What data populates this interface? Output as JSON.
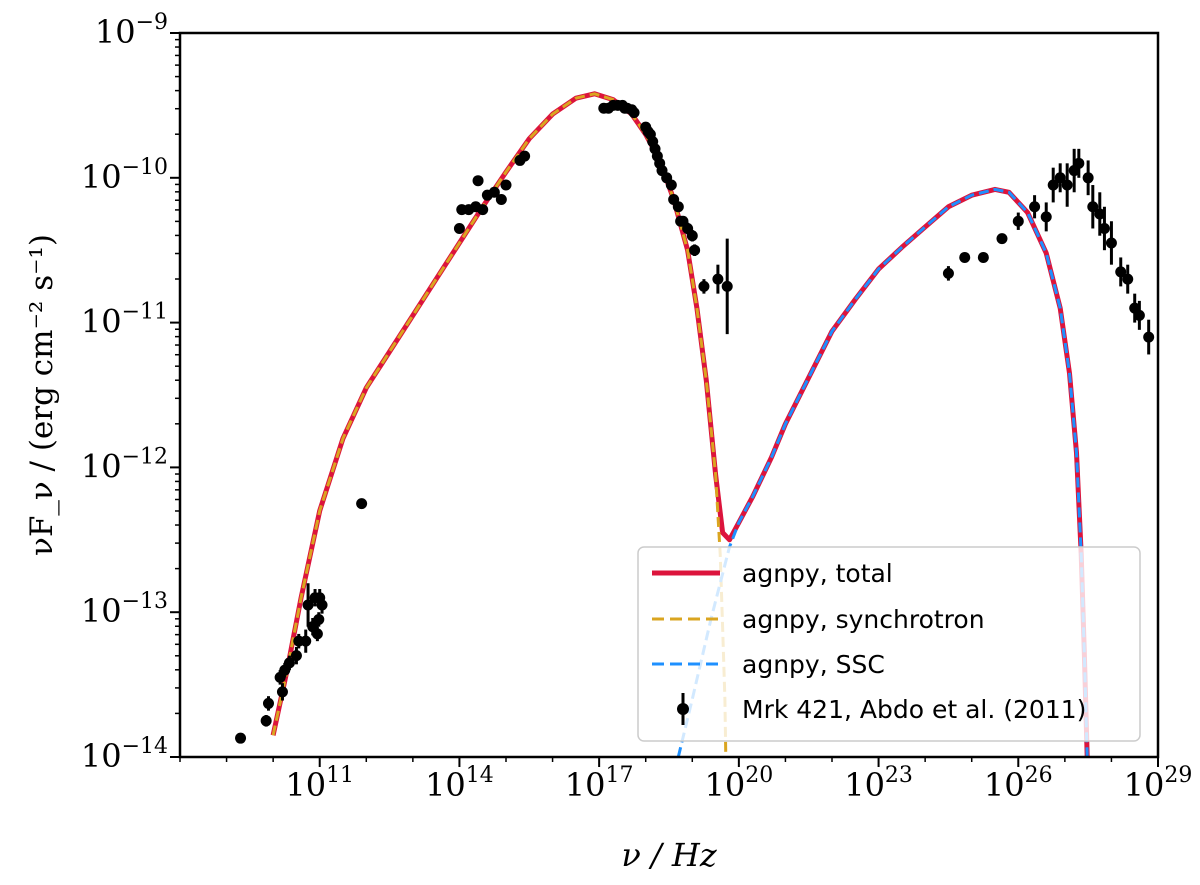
{
  "chart_data": {
    "type": "line",
    "xscale": "log",
    "yscale": "log",
    "xlim": [
      100000000.0,
      1e+29
    ],
    "ylim": [
      1e-14,
      1e-09
    ],
    "xlabel": "ν / Hz",
    "ylabel": "νF_ν / (erg cm⁻² s⁻¹)",
    "x_ticks": [
      {
        "base": "10",
        "exp": "11",
        "value": 100000000000.0
      },
      {
        "base": "10",
        "exp": "14",
        "value": 100000000000000.0
      },
      {
        "base": "10",
        "exp": "17",
        "value": 1e+17
      },
      {
        "base": "10",
        "exp": "20",
        "value": 1e+20
      },
      {
        "base": "10",
        "exp": "23",
        "value": 1e+23
      },
      {
        "base": "10",
        "exp": "26",
        "value": 1e+26
      },
      {
        "base": "10",
        "exp": "29",
        "value": 1e+29
      }
    ],
    "y_ticks": [
      {
        "base": "10",
        "exp": "−14",
        "value": 1e-14
      },
      {
        "base": "10",
        "exp": "−13",
        "value": 1e-13
      },
      {
        "base": "10",
        "exp": "−12",
        "value": 1e-12
      },
      {
        "base": "10",
        "exp": "−11",
        "value": 1e-11
      },
      {
        "base": "10",
        "exp": "−10",
        "value": 1e-10
      },
      {
        "base": "10",
        "exp": "−9",
        "value": 1e-09
      }
    ],
    "legend_position": "lower-right",
    "series": [
      {
        "name": "agnpy, total",
        "style": "solid",
        "color": "#dc143c",
        "log_points": [
          [
            10,
            -13.85
          ],
          [
            10.3,
            -13.4
          ],
          [
            10.6,
            -12.9
          ],
          [
            11,
            -12.3
          ],
          [
            11.5,
            -11.8
          ],
          [
            12,
            -11.45
          ],
          [
            12.5,
            -11.2
          ],
          [
            13,
            -10.95
          ],
          [
            13.5,
            -10.7
          ],
          [
            14,
            -10.45
          ],
          [
            14.5,
            -10.2
          ],
          [
            15,
            -9.96
          ],
          [
            15.5,
            -9.73
          ],
          [
            16,
            -9.56
          ],
          [
            16.5,
            -9.45
          ],
          [
            16.9,
            -9.42
          ],
          [
            17.3,
            -9.46
          ],
          [
            17.7,
            -9.56
          ],
          [
            18,
            -9.7
          ],
          [
            18.3,
            -9.88
          ],
          [
            18.6,
            -10.15
          ],
          [
            18.9,
            -10.5
          ],
          [
            19.1,
            -10.9
          ],
          [
            19.3,
            -11.4
          ],
          [
            19.5,
            -12.05
          ],
          [
            19.65,
            -12.45
          ],
          [
            19.8,
            -12.5
          ],
          [
            20,
            -12.38
          ],
          [
            20.3,
            -12.2
          ],
          [
            20.7,
            -11.93
          ],
          [
            21,
            -11.7
          ],
          [
            21.5,
            -11.38
          ],
          [
            22,
            -11.06
          ],
          [
            22.5,
            -10.84
          ],
          [
            23,
            -10.63
          ],
          [
            23.5,
            -10.48
          ],
          [
            24,
            -10.34
          ],
          [
            24.5,
            -10.2
          ],
          [
            25,
            -10.12
          ],
          [
            25.5,
            -10.08
          ],
          [
            25.8,
            -10.1
          ],
          [
            26.2,
            -10.24
          ],
          [
            26.6,
            -10.52
          ],
          [
            26.9,
            -10.9
          ],
          [
            27.1,
            -11.35
          ],
          [
            27.25,
            -11.9
          ],
          [
            27.35,
            -12.6
          ],
          [
            27.42,
            -13.3
          ],
          [
            27.48,
            -14.0
          ]
        ]
      },
      {
        "name": "agnpy, synchrotron",
        "style": "dashed",
        "color": "#daa520",
        "log_points": [
          [
            10,
            -13.85
          ],
          [
            10.3,
            -13.4
          ],
          [
            10.6,
            -12.9
          ],
          [
            11,
            -12.3
          ],
          [
            11.5,
            -11.8
          ],
          [
            12,
            -11.45
          ],
          [
            12.5,
            -11.2
          ],
          [
            13,
            -10.95
          ],
          [
            13.5,
            -10.7
          ],
          [
            14,
            -10.45
          ],
          [
            14.5,
            -10.2
          ],
          [
            15,
            -9.96
          ],
          [
            15.5,
            -9.73
          ],
          [
            16,
            -9.56
          ],
          [
            16.5,
            -9.45
          ],
          [
            16.9,
            -9.42
          ],
          [
            17.3,
            -9.46
          ],
          [
            17.7,
            -9.56
          ],
          [
            18,
            -9.7
          ],
          [
            18.3,
            -9.88
          ],
          [
            18.6,
            -10.15
          ],
          [
            18.9,
            -10.5
          ],
          [
            19.1,
            -10.9
          ],
          [
            19.3,
            -11.4
          ],
          [
            19.5,
            -12.05
          ],
          [
            19.6,
            -12.6
          ],
          [
            19.65,
            -13.1
          ],
          [
            19.7,
            -13.6
          ],
          [
            19.72,
            -14.0
          ]
        ]
      },
      {
        "name": "agnpy, SSC",
        "style": "dashed",
        "color": "#1e90ff",
        "log_points": [
          [
            18.7,
            -14.0
          ],
          [
            19,
            -13.6
          ],
          [
            19.4,
            -13.05
          ],
          [
            19.8,
            -12.55
          ],
          [
            20,
            -12.38
          ],
          [
            20.3,
            -12.2
          ],
          [
            20.7,
            -11.93
          ],
          [
            21,
            -11.7
          ],
          [
            21.5,
            -11.38
          ],
          [
            22,
            -11.06
          ],
          [
            22.5,
            -10.84
          ],
          [
            23,
            -10.63
          ],
          [
            23.5,
            -10.48
          ],
          [
            24,
            -10.34
          ],
          [
            24.5,
            -10.2
          ],
          [
            25,
            -10.12
          ],
          [
            25.5,
            -10.08
          ],
          [
            25.8,
            -10.1
          ],
          [
            26.2,
            -10.24
          ],
          [
            26.6,
            -10.52
          ],
          [
            26.9,
            -10.9
          ],
          [
            27.1,
            -11.35
          ],
          [
            27.25,
            -11.9
          ],
          [
            27.35,
            -12.6
          ],
          [
            27.42,
            -13.3
          ],
          [
            27.48,
            -14.0
          ]
        ]
      },
      {
        "name": "Mrk 421, Abdo et al. (2011)",
        "style": "errorbar",
        "color": "#000000",
        "log_points": [
          [
            9.3,
            -13.87,
            0.03
          ],
          [
            9.85,
            -13.75,
            0.04
          ],
          [
            9.9,
            -13.63,
            0.05
          ],
          [
            10.15,
            -13.45,
            0.05
          ],
          [
            10.2,
            -13.55,
            0.06
          ],
          [
            10.25,
            -13.4,
            0.05
          ],
          [
            10.35,
            -13.35,
            0.05
          ],
          [
            10.5,
            -13.3,
            0.06
          ],
          [
            10.55,
            -13.2,
            0.05
          ],
          [
            10.7,
            -13.2,
            0.08
          ],
          [
            10.75,
            -12.95,
            0.15
          ],
          [
            10.85,
            -13.1,
            0.06
          ],
          [
            10.9,
            -12.9,
            0.06
          ],
          [
            10.95,
            -13.15,
            0.05
          ],
          [
            10.98,
            -13.05,
            0.05
          ],
          [
            11.0,
            -12.9,
            0.06
          ],
          [
            11.05,
            -12.95,
            0.06
          ],
          [
            11.9,
            -12.25,
            0.03
          ],
          [
            14.0,
            -10.35,
            0.03
          ],
          [
            14.05,
            -10.22,
            0.03
          ],
          [
            14.2,
            -10.22,
            0.03
          ],
          [
            14.35,
            -10.2,
            0.03
          ],
          [
            14.4,
            -10.02,
            0.03
          ],
          [
            14.5,
            -10.22,
            0.03
          ],
          [
            14.6,
            -10.12,
            0.03
          ],
          [
            14.75,
            -10.1,
            0.03
          ],
          [
            14.9,
            -10.15,
            0.03
          ],
          [
            15.0,
            -10.05,
            0.03
          ],
          [
            15.3,
            -9.88,
            0.03
          ],
          [
            15.4,
            -9.85,
            0.03
          ],
          [
            17.1,
            -9.52,
            0.02
          ],
          [
            17.2,
            -9.52,
            0.02
          ],
          [
            17.3,
            -9.5,
            0.02
          ],
          [
            17.4,
            -9.5,
            0.02
          ],
          [
            17.5,
            -9.5,
            0.02
          ],
          [
            17.55,
            -9.52,
            0.02
          ],
          [
            17.6,
            -9.52,
            0.02
          ],
          [
            17.7,
            -9.53,
            0.02
          ],
          [
            17.75,
            -9.55,
            0.02
          ],
          [
            18.0,
            -9.65,
            0.02
          ],
          [
            18.05,
            -9.68,
            0.02
          ],
          [
            18.1,
            -9.7,
            0.02
          ],
          [
            18.15,
            -9.75,
            0.02
          ],
          [
            18.2,
            -9.8,
            0.02
          ],
          [
            18.25,
            -9.85,
            0.02
          ],
          [
            18.3,
            -9.9,
            0.02
          ],
          [
            18.35,
            -9.95,
            0.02
          ],
          [
            18.45,
            -10.0,
            0.03
          ],
          [
            18.55,
            -10.05,
            0.03
          ],
          [
            18.6,
            -10.15,
            0.03
          ],
          [
            18.7,
            -10.2,
            0.03
          ],
          [
            18.75,
            -10.3,
            0.03
          ],
          [
            18.8,
            -10.3,
            0.03
          ],
          [
            18.9,
            -10.35,
            0.04
          ],
          [
            19.0,
            -10.4,
            0.04
          ],
          [
            19.05,
            -10.5,
            0.04
          ],
          [
            19.25,
            -10.75,
            0.05
          ],
          [
            19.55,
            -10.7,
            0.1
          ],
          [
            19.75,
            -10.75,
            0.33
          ],
          [
            24.5,
            -10.66,
            0.05
          ],
          [
            24.85,
            -10.55,
            0.03
          ],
          [
            25.25,
            -10.55,
            0.03
          ],
          [
            25.65,
            -10.42,
            0.03
          ],
          [
            26.0,
            -10.3,
            0.06
          ],
          [
            26.35,
            -10.2,
            0.08
          ],
          [
            26.6,
            -10.27,
            0.1
          ],
          [
            26.75,
            -10.05,
            0.12
          ],
          [
            26.9,
            -10.0,
            0.1
          ],
          [
            27.05,
            -10.05,
            0.15
          ],
          [
            27.2,
            -9.95,
            0.15
          ],
          [
            27.3,
            -9.9,
            0.1
          ],
          [
            27.5,
            -10.0,
            0.12
          ],
          [
            27.6,
            -10.2,
            0.15
          ],
          [
            27.75,
            -10.25,
            0.15
          ],
          [
            27.85,
            -10.35,
            0.15
          ],
          [
            28.0,
            -10.45,
            0.15
          ],
          [
            28.2,
            -10.65,
            0.1
          ],
          [
            28.35,
            -10.7,
            0.1
          ],
          [
            28.5,
            -10.9,
            0.1
          ],
          [
            28.6,
            -10.95,
            0.1
          ],
          [
            28.8,
            -11.1,
            0.12
          ]
        ]
      }
    ]
  }
}
